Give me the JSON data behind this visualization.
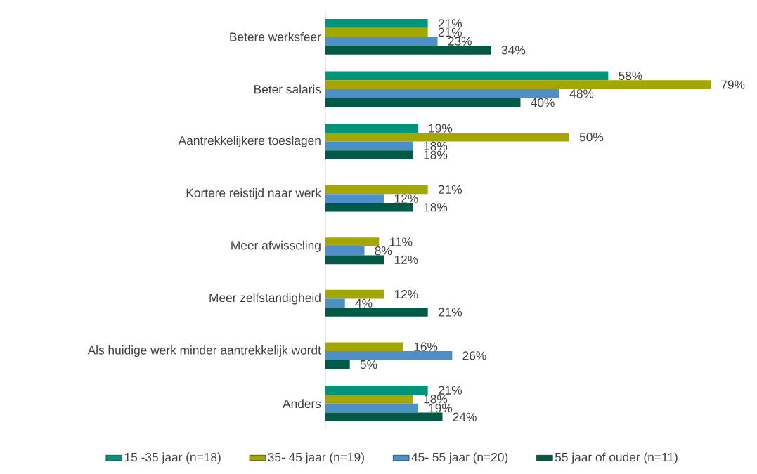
{
  "chart_data": {
    "type": "bar",
    "orientation": "horizontal",
    "legend": "bottom",
    "categories": [
      "Betere werksfeer",
      "Beter salaris",
      "Aantrekkelijkere toeslagen",
      "Kortere reistijd naar werk",
      "Meer afwisseling",
      "Meer zelfstandigheid",
      "Als huidige werk minder aantrekkelijk wordt",
      "Anders"
    ],
    "series": [
      {
        "name": "15 -35 jaar (n=18)",
        "color": "#00957a",
        "values": [
          21,
          58,
          19,
          null,
          null,
          null,
          null,
          21
        ],
        "value_labels": [
          "21%",
          "58%",
          "19%",
          null,
          null,
          null,
          null,
          "21%"
        ]
      },
      {
        "name": "35- 45 jaar (n=19)",
        "color": "#a3a700",
        "values": [
          21,
          79,
          50,
          21,
          11,
          12,
          16,
          18
        ],
        "value_labels": [
          "21%",
          "79%",
          "50%",
          "21%",
          "11%",
          "12%",
          "16%",
          "18%"
        ]
      },
      {
        "name": "45- 55 jaar (n=20)",
        "color": "#4e8fca",
        "values": [
          23,
          48,
          18,
          12,
          8,
          4,
          26,
          19
        ],
        "value_labels": [
          "23%",
          "48%",
          "18%",
          "12%",
          "8%",
          "4%",
          "26%",
          "19%"
        ]
      },
      {
        "name": "55 jaar of ouder (n=11)",
        "color": "#005a46",
        "values": [
          34,
          40,
          18,
          18,
          12,
          21,
          5,
          24
        ],
        "value_labels": [
          "34%",
          "40%",
          "18%",
          "18%",
          "12%",
          "21%",
          "5%",
          "24%"
        ]
      }
    ]
  }
}
